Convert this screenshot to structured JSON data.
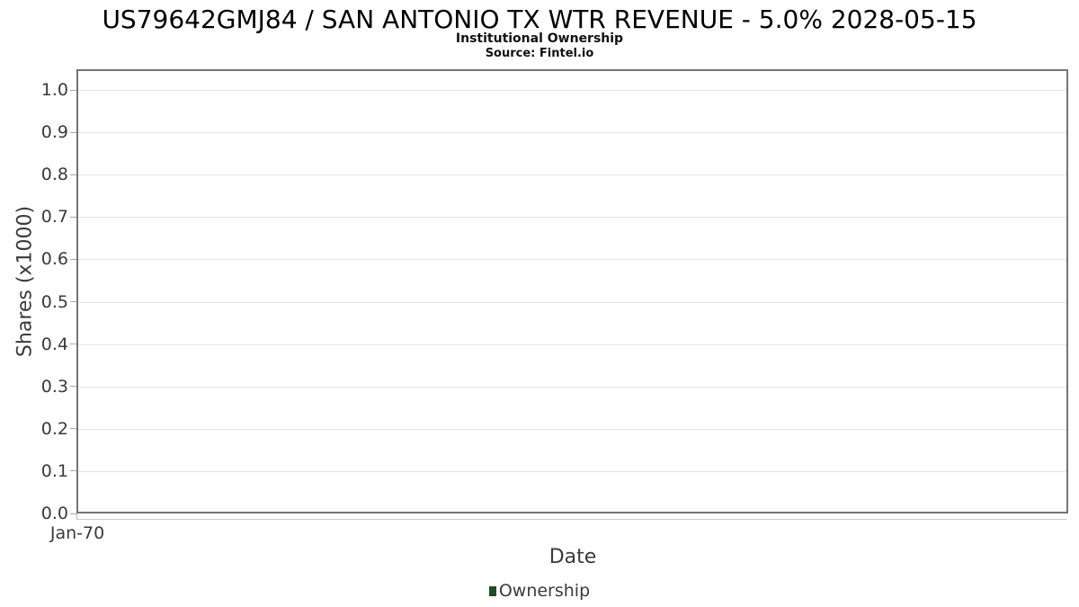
{
  "header": {
    "title": "US79642GMJ84 / SAN ANTONIO TX WTR REVENUE - 5.0% 2028-05-15",
    "subtitle": "Institutional Ownership",
    "source": "Source: Fintel.io"
  },
  "chart_data": {
    "type": "line",
    "title": "US79642GMJ84 / SAN ANTONIO TX WTR REVENUE - 5.0% 2028-05-15",
    "subtitle": "Institutional Ownership",
    "source": "Source: Fintel.io",
    "xlabel": "Date",
    "ylabel": "Shares (x1000)",
    "x_tick_labels": [
      "Jan-70"
    ],
    "y_ticks": [
      0.0,
      0.1,
      0.2,
      0.3,
      0.4,
      0.5,
      0.6,
      0.7,
      0.8,
      0.9,
      1.0
    ],
    "y_tick_labels": [
      "0.0",
      "0.1",
      "0.2",
      "0.3",
      "0.4",
      "0.5",
      "0.6",
      "0.7",
      "0.8",
      "0.9",
      "1.0"
    ],
    "ylim": [
      0,
      1.05
    ],
    "grid": true,
    "legend_position": "bottom",
    "series": [
      {
        "name": "Ownership",
        "color": "#1e4d2b",
        "x": [],
        "values": []
      }
    ]
  },
  "colors": {
    "plot_border": "#747474",
    "gridline": "#e3e3e3",
    "tick": "#a8a8a8",
    "axis_line": "#c9c9c9",
    "text": "#3a3a3a",
    "series_green": "#1e4d2b"
  }
}
